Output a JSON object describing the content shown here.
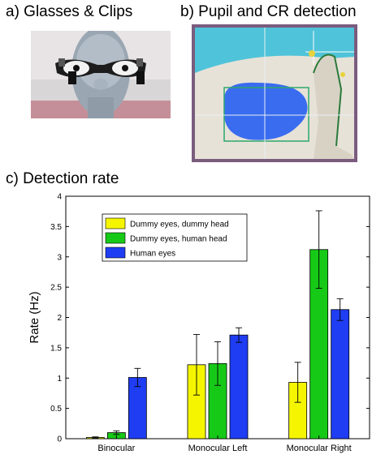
{
  "panels": {
    "a_title": "a) Glasses & Clips",
    "b_title": "b) Pupil and CR detection",
    "c_title": "c) Detection rate"
  },
  "colors": {
    "series_dummy_dummy": "#f5f500",
    "series_dummy_human": "#17c917",
    "series_human_eyes": "#1f3df2",
    "error_bar": "#000000",
    "axis": "#000000"
  },
  "chart_data": {
    "type": "bar",
    "title": "",
    "xlabel": "",
    "ylabel": "Rate (Hz)",
    "ylim": [
      0,
      4
    ],
    "yticks": [
      0,
      0.5,
      1,
      1.5,
      2,
      2.5,
      3,
      3.5,
      4
    ],
    "ytick_labels": [
      "0",
      "0.5",
      "1",
      "1.5",
      "2",
      "2.5",
      "3",
      "3.5",
      "4"
    ],
    "categories": [
      "Binocular",
      "Monocular Left",
      "Monocular Right"
    ],
    "series": [
      {
        "name": "Dummy eyes, dummy head",
        "values": [
          0.02,
          1.22,
          0.93
        ],
        "errors": [
          0.01,
          0.5,
          0.33
        ]
      },
      {
        "name": "Dummy eyes, human head",
        "values": [
          0.1,
          1.24,
          3.12
        ],
        "errors": [
          0.03,
          0.36,
          0.64
        ]
      },
      {
        "name": "Human eyes",
        "values": [
          1.01,
          1.71,
          2.13
        ],
        "errors": [
          0.15,
          0.12,
          0.18
        ]
      }
    ],
    "legend_position": "top-left",
    "grid": false
  }
}
